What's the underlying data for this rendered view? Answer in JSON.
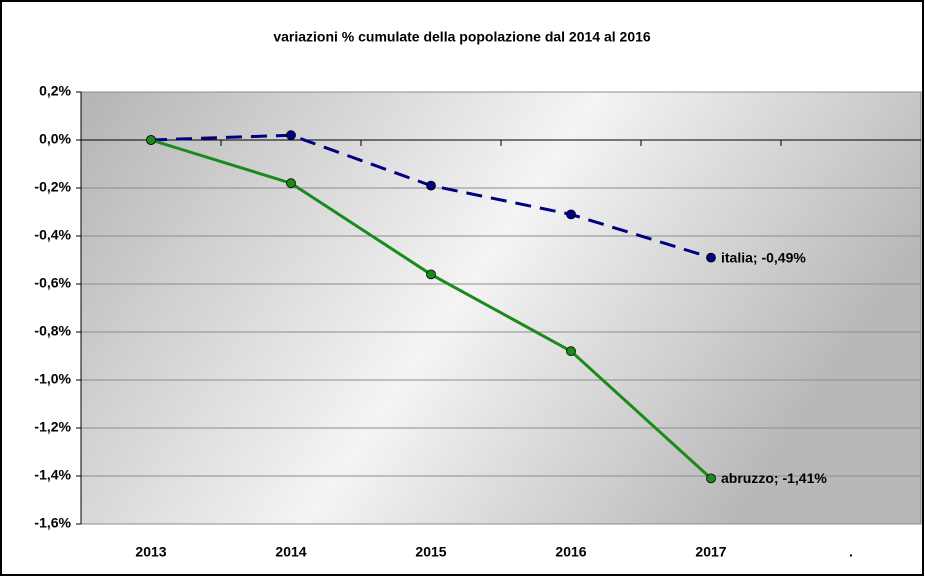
{
  "chart_data": {
    "type": "line",
    "title": "variazioni % cumulate della popolazione dal 2014 al 2016",
    "categories": [
      "2013",
      "2014",
      "2015",
      "2016",
      "2017",
      "."
    ],
    "series": [
      {
        "name": "italia",
        "color": "#000080",
        "dashed": true,
        "values": [
          0,
          0.02,
          -0.19,
          -0.31,
          -0.49,
          null
        ],
        "value_labels": [
          null,
          null,
          null,
          null,
          "italia; -0,49%",
          null
        ]
      },
      {
        "name": "abruzzo",
        "color": "#1a8a1a",
        "dashed": false,
        "values": [
          0,
          -0.18,
          -0.56,
          -0.88,
          -1.41,
          null
        ],
        "value_labels": [
          null,
          null,
          null,
          null,
          "abruzzo; -1,41%",
          null
        ]
      }
    ],
    "ylim": [
      -1.6,
      0.2
    ],
    "yticks": [
      {
        "value": -1.6,
        "label": "-1,6%"
      },
      {
        "value": -1.4,
        "label": "-1,4%"
      },
      {
        "value": -1.2,
        "label": "-1,2%"
      },
      {
        "value": -1.0,
        "label": "-1,0%"
      },
      {
        "value": -0.8,
        "label": "-0,8%"
      },
      {
        "value": -0.6,
        "label": "-0,6%"
      },
      {
        "value": -0.4,
        "label": "-0,4%"
      },
      {
        "value": -0.2,
        "label": "-0,2%"
      },
      {
        "value": 0,
        "label": "0,0%"
      },
      {
        "value": 0.2,
        "label": "0,2%"
      }
    ],
    "grid": true
  }
}
